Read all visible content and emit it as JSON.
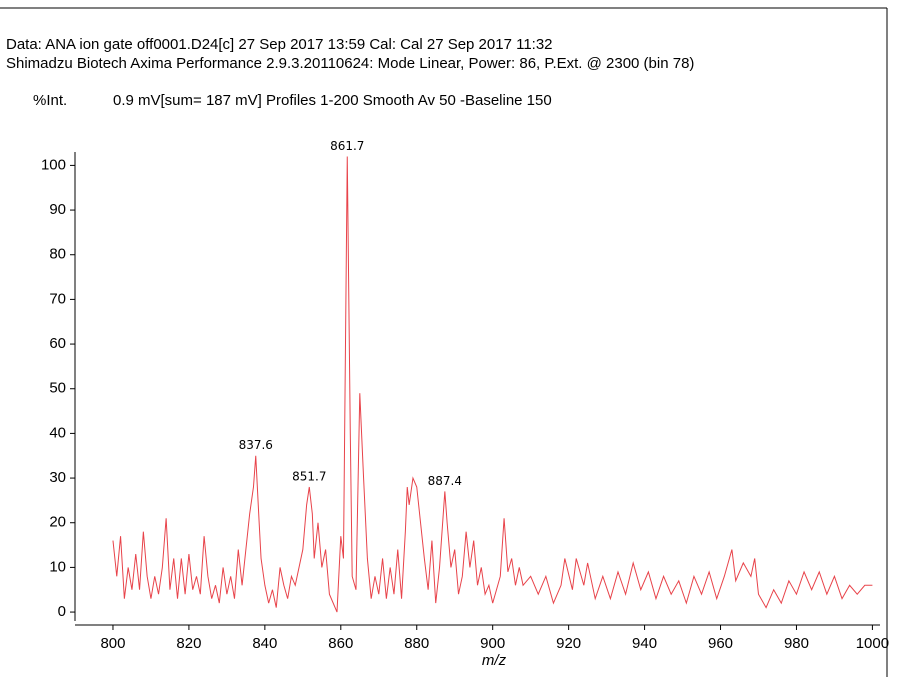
{
  "chart_data": {
    "type": "line",
    "header": [
      "Data: ANA ion gate off0001.D24[c] 27 Sep 2017 13:59 Cal: Cal 27 Sep 2017 11:32",
      "Shimadzu Biotech Axima Performance 2.9.3.20110624: Mode Linear, Power: 86, P.Ext. @ 2300 (bin 78)"
    ],
    "y_label": "%Int.",
    "subtitle": "0.9 mV[sum= 187 mV]  Profiles 1-200 Smooth Av 50 -Baseline 150",
    "x_label": "m/z",
    "color": "#e8434a",
    "xlim": [
      790,
      1002
    ],
    "ylim": [
      -2,
      103
    ],
    "xticks": [
      800,
      820,
      840,
      860,
      880,
      900,
      920,
      940,
      960,
      980,
      1000
    ],
    "yticks": [
      0,
      10,
      20,
      30,
      40,
      50,
      60,
      70,
      80,
      90,
      100
    ],
    "x": [
      800,
      801,
      802,
      803,
      804,
      805,
      806,
      807,
      808,
      809,
      810,
      811,
      812,
      813,
      814,
      815,
      816,
      817,
      818,
      819,
      820,
      821,
      822,
      823,
      824,
      825,
      826,
      827,
      828,
      829,
      830,
      831,
      832,
      833,
      834,
      835,
      836,
      837,
      837.6,
      838.5,
      839,
      840,
      841,
      842,
      843,
      844,
      845,
      846,
      847,
      848,
      849,
      850,
      851,
      851.7,
      852.5,
      853,
      854,
      855,
      856,
      857,
      858,
      859,
      860,
      860.7,
      861.7,
      862.5,
      863,
      864,
      865,
      866,
      867,
      868,
      869,
      870,
      871,
      872,
      873,
      874,
      875,
      876,
      877,
      877.5,
      878,
      879,
      880,
      881,
      882,
      883,
      884,
      885,
      886,
      887.4,
      888,
      889,
      890,
      891,
      892,
      893,
      894,
      895,
      896,
      897,
      898,
      899,
      900,
      901,
      902,
      903,
      904,
      905,
      906,
      907,
      908,
      910,
      912,
      914,
      916,
      918,
      919,
      921,
      922,
      924,
      925,
      927,
      929,
      931,
      933,
      935,
      937,
      939,
      941,
      943,
      945,
      947,
      949,
      951,
      953,
      955,
      957,
      959,
      961,
      963,
      964,
      966,
      968,
      969,
      970,
      972,
      974,
      976,
      978,
      980,
      982,
      984,
      986,
      988,
      990,
      992,
      994,
      996,
      998,
      1000
    ],
    "values": [
      16,
      8,
      17,
      3,
      10,
      5,
      13,
      5,
      18,
      8,
      3,
      8,
      4,
      10,
      21,
      5,
      12,
      3,
      12,
      4,
      13,
      5,
      8,
      4,
      17,
      8,
      3,
      6,
      2,
      10,
      4,
      8,
      3,
      14,
      6,
      14,
      22,
      28,
      35,
      20,
      12,
      6,
      2,
      5,
      1,
      10,
      6,
      3,
      8,
      6,
      10,
      14,
      24,
      28,
      22,
      12,
      20,
      10,
      14,
      4,
      2,
      0,
      17,
      12,
      102,
      40,
      8,
      5,
      49,
      30,
      12,
      3,
      8,
      4,
      12,
      3,
      10,
      4,
      14,
      3,
      18,
      28,
      24,
      30,
      28,
      20,
      12,
      5,
      16,
      2,
      10,
      27,
      20,
      10,
      14,
      4,
      8,
      18,
      10,
      16,
      6,
      10,
      4,
      6,
      2,
      5,
      8,
      21,
      9,
      12,
      6,
      10,
      6,
      8,
      4,
      8,
      2,
      6,
      12,
      5,
      12,
      6,
      11,
      3,
      8,
      3,
      9,
      4,
      11,
      5,
      9,
      3,
      8,
      4,
      7,
      2,
      8,
      4,
      9,
      3,
      8,
      14,
      7,
      11,
      8,
      12,
      4,
      1,
      5,
      2,
      7,
      4,
      9,
      5,
      9,
      4,
      8,
      3,
      6,
      4,
      6,
      6
    ],
    "annotations": [
      {
        "x": 837.6,
        "y": 35
      },
      {
        "x": 851.7,
        "y": 28
      },
      {
        "x": 861.7,
        "y": 102
      },
      {
        "x": 887.4,
        "y": 27
      }
    ]
  }
}
